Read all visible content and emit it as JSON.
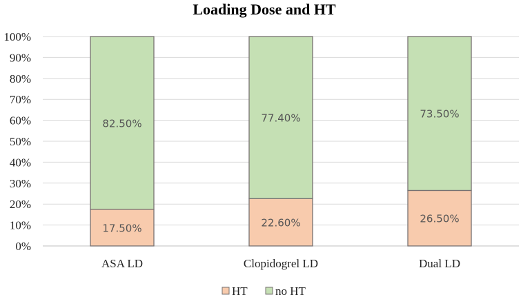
{
  "chart_data": {
    "type": "bar",
    "stacked": true,
    "title": "Loading Dose and HT",
    "xlabel": "",
    "ylabel": "",
    "categories": [
      "ASA LD",
      "Clopidogrel LD",
      "Dual LD"
    ],
    "ylim": [
      0,
      100
    ],
    "yticks": [
      0,
      10,
      20,
      30,
      40,
      50,
      60,
      70,
      80,
      90,
      100
    ],
    "ytick_labels": [
      "0%",
      "10%",
      "20%",
      "30%",
      "40%",
      "50%",
      "60%",
      "70%",
      "80%",
      "90%",
      "100%"
    ],
    "grid": true,
    "legend_position": "bottom",
    "series": [
      {
        "name": "HT",
        "values": [
          17.5,
          22.6,
          26.5
        ],
        "labels": [
          "17.50%",
          "22.60%",
          "26.50%"
        ],
        "color": "#f8cbad"
      },
      {
        "name": "no HT",
        "values": [
          82.5,
          77.4,
          73.5
        ],
        "labels": [
          "82.50%",
          "77.40%",
          "73.50%"
        ],
        "color": "#c5e0b4"
      }
    ]
  }
}
